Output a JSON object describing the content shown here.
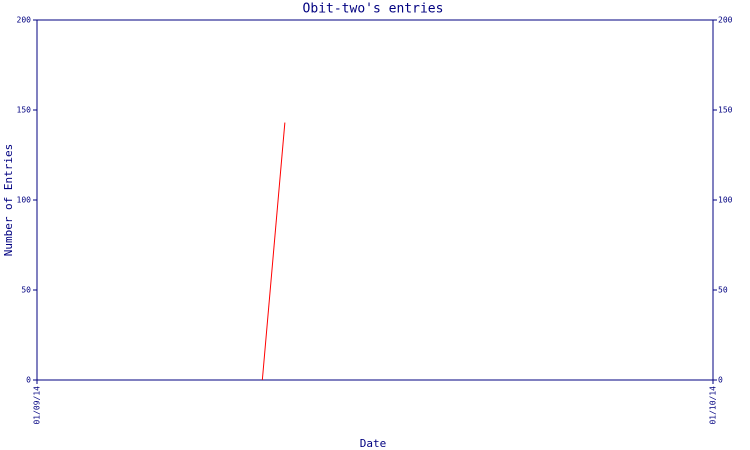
{
  "chart_data": {
    "type": "line",
    "title": "Obit-two's entries",
    "x_label": "Date",
    "y_label": "Number of Entries",
    "x": [
      "2014-09-11",
      "2014-09-12"
    ],
    "series": [
      {
        "name": "entries",
        "color": "#ff0000",
        "values": [
          0,
          143
        ]
      }
    ],
    "xlim": [
      "2014-09-01",
      "2014-10-01"
    ],
    "xticks": [
      {
        "value": "2014-09-01",
        "label": "01/09/14"
      },
      {
        "value": "2014-10-01",
        "label": "01/10/14"
      }
    ],
    "ylim": [
      0,
      200
    ],
    "yticks": [
      0,
      50,
      100,
      150,
      200
    ],
    "mirror_y_axis": true,
    "axis_color": "#000080"
  }
}
